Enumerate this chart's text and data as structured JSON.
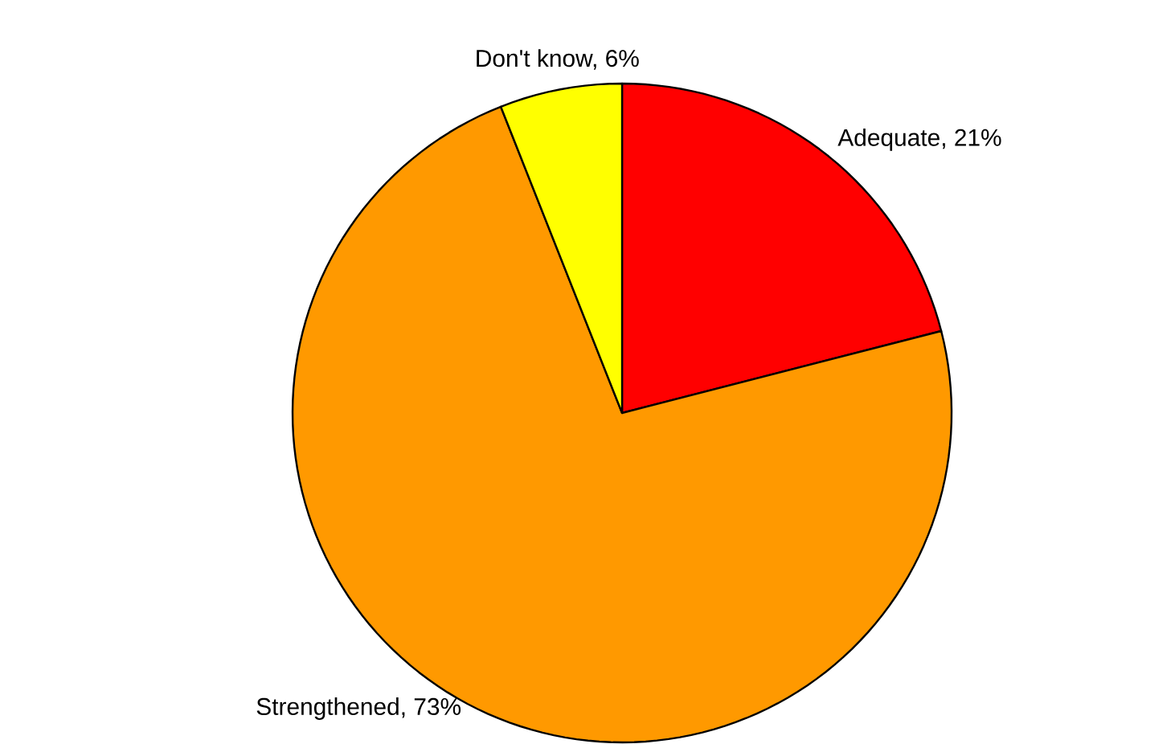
{
  "chart_data": {
    "type": "pie",
    "categories": [
      "Adequate, 21%",
      "Strengthened, 73%",
      "Don't know, 6%"
    ],
    "values": [
      21,
      73,
      6
    ],
    "colors": [
      "#ff0000",
      "#ff9900",
      "#ffff00"
    ]
  }
}
